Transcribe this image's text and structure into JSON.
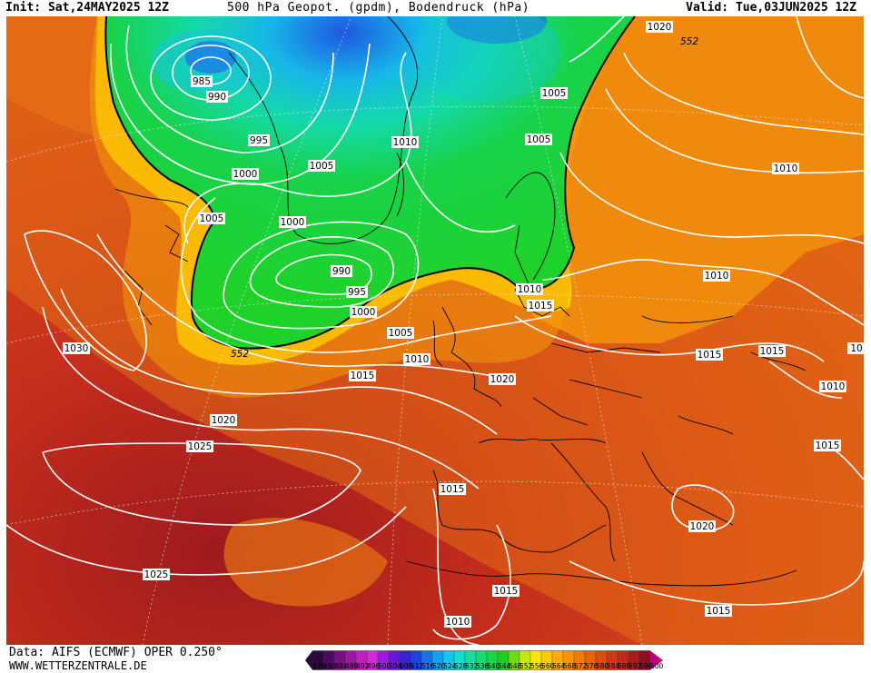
{
  "header": {
    "init": "Init: Sat,24MAY2025 12Z",
    "title": "500 hPa Geopot. (gpdm), Bodendruck (hPa)",
    "valid": "Valid: Tue,03JUN2025 12Z"
  },
  "footer": {
    "data_source": "Data: AIFS (ECMWF) OPER 0.250°",
    "website": "WWW.WETTERZENTRALE.DE"
  },
  "isobar_labels": [
    "985",
    "990",
    "995",
    "1000",
    "1005",
    "1010",
    "1015",
    "1020",
    "1025",
    "1030"
  ],
  "map_labels": [
    {
      "text": "985",
      "key": "l985"
    },
    {
      "text": "990",
      "key": "l990a"
    },
    {
      "text": "995",
      "key": "l995a"
    },
    {
      "text": "1000",
      "key": "l1000a"
    },
    {
      "text": "1005",
      "key": "l1005a"
    },
    {
      "text": "1005",
      "key": "l1005b"
    },
    {
      "text": "1010",
      "key": "l1010a"
    },
    {
      "text": "1005",
      "key": "l1005c"
    },
    {
      "text": "1005",
      "key": "l1005d"
    },
    {
      "text": "1020",
      "key": "l1020a"
    },
    {
      "text": "1010",
      "key": "l1010b"
    },
    {
      "text": "1000",
      "key": "l1000b"
    },
    {
      "text": "990",
      "key": "l990b"
    },
    {
      "text": "995",
      "key": "l995b"
    },
    {
      "text": "1000",
      "key": "l1000c"
    },
    {
      "text": "1005",
      "key": "l1005e"
    },
    {
      "text": "1010",
      "key": "l1010c"
    },
    {
      "text": "1010",
      "key": "l1010d"
    },
    {
      "text": "1015",
      "key": "l1015a"
    },
    {
      "text": "1015",
      "key": "l1015b"
    },
    {
      "text": "1020",
      "key": "l1020b"
    },
    {
      "text": "1010",
      "key": "l1010e"
    },
    {
      "text": "1015",
      "key": "l1015c"
    },
    {
      "text": "1015",
      "key": "l1015d"
    },
    {
      "text": "1010",
      "key": "l1010f"
    },
    {
      "text": "1030",
      "key": "l1030"
    },
    {
      "text": "1020",
      "key": "l1020c"
    },
    {
      "text": "1025",
      "key": "l1025a"
    },
    {
      "text": "1015",
      "key": "l1015e"
    },
    {
      "text": "1015",
      "key": "l1015f"
    },
    {
      "text": "1020",
      "key": "l1020d"
    },
    {
      "text": "1025",
      "key": "l1025b"
    },
    {
      "text": "1015",
      "key": "l1015g"
    },
    {
      "text": "1015",
      "key": "l1015h"
    },
    {
      "text": "1010",
      "key": "l1010g"
    },
    {
      "text": "552",
      "key": "l552a"
    },
    {
      "text": "552",
      "key": "l552b"
    },
    {
      "text": "10",
      "key": "l10edge"
    }
  ],
  "colorbar": {
    "levels": [
      "476",
      "480",
      "484",
      "488",
      "492",
      "496",
      "500",
      "504",
      "508",
      "512",
      "516",
      "520",
      "524",
      "528",
      "532",
      "536",
      "540",
      "544",
      "548",
      "552",
      "556",
      "560",
      "564",
      "568",
      "572",
      "576",
      "580",
      "584",
      "588",
      "592",
      "596",
      "600"
    ],
    "colors": [
      "#2a0a3a",
      "#4b0a5e",
      "#76107f",
      "#9a1a9e",
      "#c21fbf",
      "#d22ad7",
      "#9b1be0",
      "#6a16d9",
      "#3b20d6",
      "#1d43e0",
      "#1c6fe8",
      "#14a0ee",
      "#12c7ec",
      "#10dfcf",
      "#12e0a0",
      "#14db72",
      "#14d646",
      "#1cce1c",
      "#6cdc10",
      "#c8e60a",
      "#ffe600",
      "#ffc800",
      "#ffad00",
      "#ff9500",
      "#f57a00",
      "#eb6200",
      "#e04a0c",
      "#d33814",
      "#c02a18",
      "#a81c1c",
      "#8a1020",
      "#c0007a"
    ]
  },
  "colors": {
    "trough_green": "#1fd22a",
    "trough_cyan": "#17c9c9",
    "trough_blue": "#1e6fe0",
    "ridge_red": "#b8221f",
    "ridge_orange": "#e8611a",
    "isobar": "#ffffff",
    "coastline": "#000000"
  }
}
